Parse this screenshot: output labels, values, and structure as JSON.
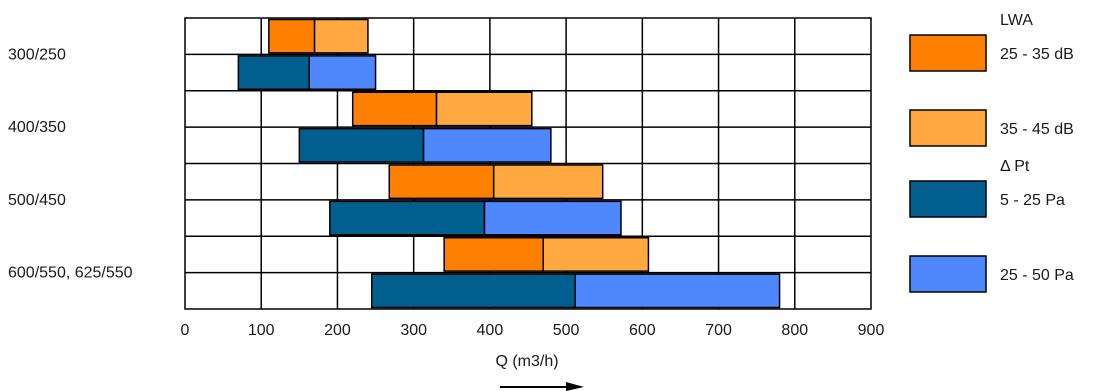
{
  "chart_data": {
    "type": "bar",
    "orientation": "horizontal-floating",
    "categories": [
      "300/250",
      "400/350",
      "500/450",
      "600/550, 625/550"
    ],
    "xlabel": "Q (m3/h)",
    "xlim": [
      0,
      900
    ],
    "xticks": [
      0,
      100,
      200,
      300,
      400,
      500,
      600,
      700,
      800,
      900
    ],
    "grid": true,
    "legend_position": "right",
    "legend_groups": [
      {
        "title": "LWA",
        "series": [
          0,
          1
        ]
      },
      {
        "title": "Δ Pt",
        "series": [
          2,
          3
        ]
      }
    ],
    "series": [
      {
        "name": "25 - 35 dB",
        "color": "#ff8000",
        "row": "upper",
        "ranges": [
          [
            110,
            170
          ],
          [
            220,
            330
          ],
          [
            268,
            405
          ],
          [
            340,
            470
          ]
        ]
      },
      {
        "name": "35 - 45 dB",
        "color": "#ffa940",
        "row": "upper",
        "ranges": [
          [
            170,
            240
          ],
          [
            330,
            455
          ],
          [
            405,
            548
          ],
          [
            470,
            608
          ]
        ]
      },
      {
        "name": "5 - 25 Pa",
        "color": "#005f8f",
        "row": "lower",
        "ranges": [
          [
            70,
            163
          ],
          [
            150,
            313
          ],
          [
            190,
            393
          ],
          [
            245,
            512
          ]
        ]
      },
      {
        "name": "25 - 50 Pa",
        "color": "#4f87ff",
        "row": "lower",
        "ranges": [
          [
            163,
            250
          ],
          [
            313,
            480
          ],
          [
            393,
            572
          ],
          [
            512,
            780
          ]
        ]
      }
    ]
  }
}
